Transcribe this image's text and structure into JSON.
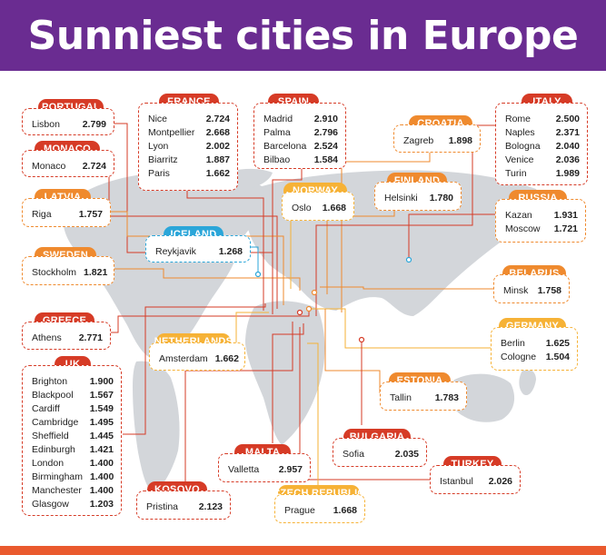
{
  "title": "Sunniest cities in Europe",
  "colors": {
    "header": "#6a2c91",
    "red": "#d63b26",
    "orange": "#ef8a2e",
    "yellow": "#f6b236",
    "blue": "#2ba6d9",
    "footer": "#ea5a2e"
  },
  "countries": {
    "portugal": {
      "name": "PORTUGAL",
      "cities": [
        {
          "city": "Lisbon",
          "value": "2.799"
        }
      ]
    },
    "monaco": {
      "name": "MONACO",
      "cities": [
        {
          "city": "Monaco",
          "value": "2.724"
        }
      ]
    },
    "latvia": {
      "name": "LATVIA",
      "cities": [
        {
          "city": "Riga",
          "value": "1.757"
        }
      ]
    },
    "sweden": {
      "name": "SWEDEN",
      "cities": [
        {
          "city": "Stockholm",
          "value": "1.821"
        }
      ]
    },
    "greece": {
      "name": "GREECE",
      "cities": [
        {
          "city": "Athens",
          "value": "2.771"
        }
      ]
    },
    "uk": {
      "name": "UK",
      "cities": [
        {
          "city": "Brighton",
          "value": "1.900"
        },
        {
          "city": "Blackpool",
          "value": "1.567"
        },
        {
          "city": "Cardiff",
          "value": "1.549"
        },
        {
          "city": "Cambridge",
          "value": "1.495"
        },
        {
          "city": "Sheffield",
          "value": "1.445"
        },
        {
          "city": "Edinburgh",
          "value": "1.421"
        },
        {
          "city": "London",
          "value": "1.400"
        },
        {
          "city": "Birmingham",
          "value": "1.400"
        },
        {
          "city": "Manchester",
          "value": "1.400"
        },
        {
          "city": "Glasgow",
          "value": "1.203"
        }
      ]
    },
    "france": {
      "name": "FRANCE",
      "cities": [
        {
          "city": "Nice",
          "value": "2.724"
        },
        {
          "city": "Montpellier",
          "value": "2.668"
        },
        {
          "city": "Lyon",
          "value": "2.002"
        },
        {
          "city": "Biarritz",
          "value": "1.887"
        },
        {
          "city": "Paris",
          "value": "1.662"
        }
      ]
    },
    "spain": {
      "name": "SPAIN",
      "cities": [
        {
          "city": "Madrid",
          "value": "2.910"
        },
        {
          "city": "Palma",
          "value": "2.796"
        },
        {
          "city": "Barcelona",
          "value": "2.524"
        },
        {
          "city": "Bilbao",
          "value": "1.584"
        }
      ]
    },
    "iceland": {
      "name": "ICELAND",
      "cities": [
        {
          "city": "Reykjavik",
          "value": "1.268"
        }
      ]
    },
    "norway": {
      "name": "NORWAY",
      "cities": [
        {
          "city": "Oslo",
          "value": "1.668"
        }
      ]
    },
    "netherlands": {
      "name": "NETHERLANDS",
      "cities": [
        {
          "city": "Amsterdam",
          "value": "1.662"
        }
      ]
    },
    "croatia": {
      "name": "CROATIA",
      "cities": [
        {
          "city": "Zagreb",
          "value": "1.898"
        }
      ]
    },
    "finland": {
      "name": "FINLAND",
      "cities": [
        {
          "city": "Helsinki",
          "value": "1.780"
        }
      ]
    },
    "italy": {
      "name": "ITALY",
      "cities": [
        {
          "city": "Rome",
          "value": "2.500"
        },
        {
          "city": "Naples",
          "value": "2.371"
        },
        {
          "city": "Bologna",
          "value": "2.040"
        },
        {
          "city": "Venice",
          "value": "2.036"
        },
        {
          "city": "Turin",
          "value": "1.989"
        }
      ]
    },
    "russia": {
      "name": "RUSSIA",
      "cities": [
        {
          "city": "Kazan",
          "value": "1.931"
        },
        {
          "city": "Moscow",
          "value": "1.721"
        }
      ]
    },
    "belarus": {
      "name": "BELARUS",
      "cities": [
        {
          "city": "Minsk",
          "value": "1.758"
        }
      ]
    },
    "germany": {
      "name": "GERMANY",
      "cities": [
        {
          "city": "Berlin",
          "value": "1.625"
        },
        {
          "city": "Cologne",
          "value": "1.504"
        }
      ]
    },
    "estonia": {
      "name": "ESTONIA",
      "cities": [
        {
          "city": "Tallin",
          "value": "1.783"
        }
      ]
    },
    "bulgaria": {
      "name": "BULGARIA",
      "cities": [
        {
          "city": "Sofia",
          "value": "2.035"
        }
      ]
    },
    "malta": {
      "name": "MALTA",
      "cities": [
        {
          "city": "Valletta",
          "value": "2.957"
        }
      ]
    },
    "turkey": {
      "name": "TURKEY",
      "cities": [
        {
          "city": "Istanbul",
          "value": "2.026"
        }
      ]
    },
    "kosovo": {
      "name": "KOSOVO",
      "cities": [
        {
          "city": "Pristina",
          "value": "2.123"
        }
      ]
    },
    "czech": {
      "name": "CZECH REPUBLIC",
      "cities": [
        {
          "city": "Prague",
          "value": "1.668"
        }
      ]
    }
  }
}
